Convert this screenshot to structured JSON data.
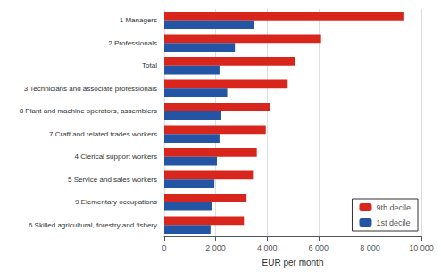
{
  "chart_data": {
    "type": "bar",
    "orientation": "horizontal",
    "categories": [
      "1 Managers",
      "2 Professionals",
      "Total",
      "3 Technicians and associate professionals",
      "8 Plant and machine operators, assemblers",
      "7 Craft and related trades workers",
      "4 Clerical support workers",
      "5 Service and sales workers",
      "9 Elementary occupations",
      "6 Skilled agricultural, forestry and fishery"
    ],
    "series": [
      {
        "name": "9th decile",
        "color": "#d9261c",
        "values": [
          9300,
          6100,
          5100,
          4800,
          4100,
          3950,
          3600,
          3450,
          3200,
          3100
        ]
      },
      {
        "name": "1st decile",
        "color": "#2455a4",
        "values": [
          3500,
          2750,
          2150,
          2450,
          2200,
          2150,
          2050,
          1950,
          1850,
          1800
        ]
      }
    ],
    "xlabel": "EUR per month",
    "xlim": [
      0,
      10000
    ],
    "xticks": [
      0,
      {
        "value": 2000,
        "label": "2 000"
      },
      {
        "value": 4000,
        "label": "4 000"
      },
      {
        "value": 6000,
        "label": "6 000"
      },
      {
        "value": 8000,
        "label": "8 000"
      },
      {
        "value": 10000,
        "label": "10 000"
      }
    ],
    "grid": true,
    "legend": "lower right"
  }
}
